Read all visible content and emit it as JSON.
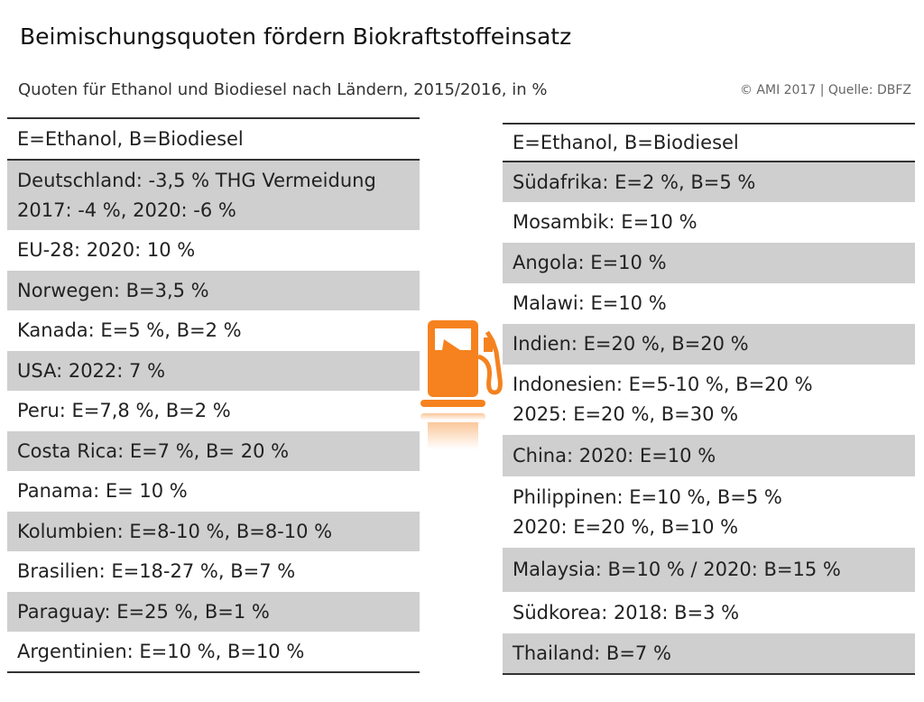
{
  "title": "Beimischungsquoten fördern Biokraftstoffeinsatz",
  "subtitle": "Quoten für Ethanol und Biodiesel nach Ländern, 2015/2016, in %",
  "credit": "© AMI 2017 | Quelle: DBFZ",
  "left": {
    "header": "E=Ethanol, B=Biodiesel",
    "rows": [
      {
        "lines": [
          "Deutschland: -3,5 % THG Vermeidung",
          "2017: -4 %, 2020: -6 %"
        ],
        "shaded": true
      },
      {
        "lines": [
          "EU-28: 2020: 10 %"
        ],
        "shaded": false
      },
      {
        "lines": [
          "Norwegen: B=3,5 %"
        ],
        "shaded": true
      },
      {
        "lines": [
          "Kanada: E=5 %, B=2 %"
        ],
        "shaded": false
      },
      {
        "lines": [
          "USA: 2022: 7 %"
        ],
        "shaded": true
      },
      {
        "lines": [
          "Peru: E=7,8 %, B=2 %"
        ],
        "shaded": false
      },
      {
        "lines": [
          "Costa Rica: E=7 %, B= 20 %"
        ],
        "shaded": true
      },
      {
        "lines": [
          "Panama: E= 10 %"
        ],
        "shaded": false
      },
      {
        "lines": [
          "Kolumbien: E=8-10 %, B=8-10 %"
        ],
        "shaded": true
      },
      {
        "lines": [
          "Brasilien: E=18-27 %, B=7 %"
        ],
        "shaded": false
      },
      {
        "lines": [
          "Paraguay: E=25 %, B=1 %"
        ],
        "shaded": true
      },
      {
        "lines": [
          "Argentinien: E=10 %, B=10 %"
        ],
        "shaded": false
      }
    ]
  },
  "right": {
    "header": "E=Ethanol, B=Biodiesel",
    "rows": [
      {
        "lines": [
          "Südafrika: E=2 %, B=5 %"
        ],
        "shaded": true
      },
      {
        "lines": [
          "Mosambik: E=10 %"
        ],
        "shaded": false
      },
      {
        "lines": [
          "Angola: E=10 %"
        ],
        "shaded": true
      },
      {
        "lines": [
          "Malawi: E=10 %"
        ],
        "shaded": false
      },
      {
        "lines": [
          "Indien: E=20 %, B=20 %"
        ],
        "shaded": true
      },
      {
        "lines": [
          "Indonesien: E=5-10 %, B=20 %",
          "2025: E=20 %, B=30 %"
        ],
        "shaded": false
      },
      {
        "lines": [
          "China: 2020: E=10 %"
        ],
        "shaded": true
      },
      {
        "lines": [
          "Philippinen: E=10 %, B=5 %",
          "2020: E=20 %, B=10 %"
        ],
        "shaded": false
      },
      {
        "lines": [
          "Malaysia: B=10 % / 2020: B=15 %"
        ],
        "shaded": true
      },
      {
        "lines": [
          "Südkorea: 2018: B=3 %"
        ],
        "shaded": false
      },
      {
        "lines": [
          "Thailand: B=7 %"
        ],
        "shaded": true
      }
    ]
  },
  "icon": "fuel-pump-icon",
  "accent": "#f5821f"
}
